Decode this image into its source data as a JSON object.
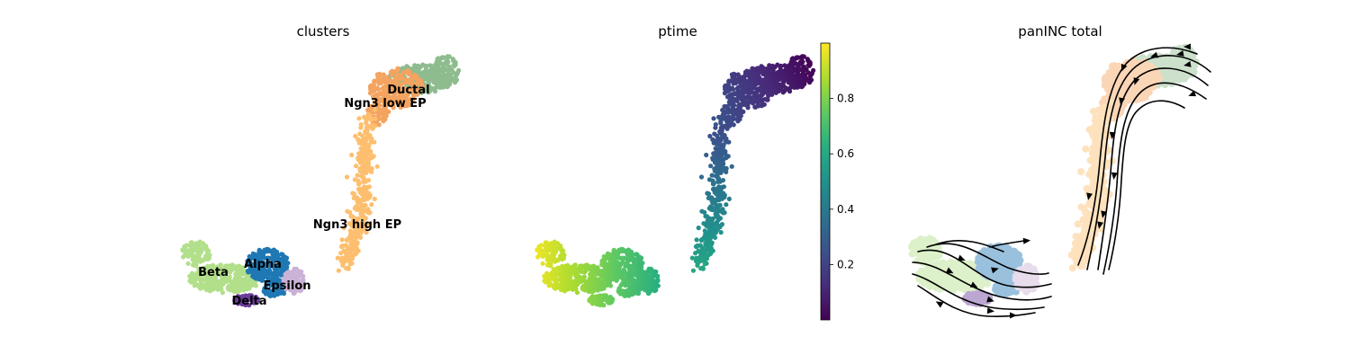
{
  "figure": {
    "panels": [
      {
        "title": "clusters"
      },
      {
        "title": "ptime"
      },
      {
        "title": "panINC total"
      }
    ]
  },
  "chart_data": [
    {
      "type": "scatter",
      "title": "clusters",
      "xlabel": "",
      "ylabel": "",
      "axes_visible": false,
      "categories": [
        {
          "name": "Ductal",
          "color": "#8fbc8f"
        },
        {
          "name": "Ngn3 low EP",
          "color": "#f4a460"
        },
        {
          "name": "Ngn3 high EP",
          "color": "#fdbf6f"
        },
        {
          "name": "Alpha",
          "color": "#1f78b4"
        },
        {
          "name": "Beta",
          "color": "#b2df8a"
        },
        {
          "name": "Delta",
          "color": "#6a3d9a"
        },
        {
          "name": "Epsilon",
          "color": "#cab2d6"
        }
      ],
      "labels": [
        "Ductal",
        "Ngn3 low EP",
        "Ngn3 high EP",
        "Alpha",
        "Beta",
        "Delta",
        "Epsilon"
      ]
    },
    {
      "type": "scatter",
      "title": "ptime",
      "xlabel": "",
      "ylabel": "",
      "axes_visible": false,
      "colormap": "viridis",
      "colorbar": {
        "range": [
          0.0,
          1.0
        ],
        "ticks": [
          "0.2",
          "0.4",
          "0.6",
          "0.8"
        ],
        "tick_values": [
          0.2,
          0.4,
          0.6,
          0.8
        ]
      }
    },
    {
      "type": "streamplot",
      "title": "panINC total",
      "xlabel": "",
      "ylabel": "",
      "axes_visible": false,
      "background": "clusters embedding (faded)",
      "stream_color": "#000000"
    }
  ]
}
